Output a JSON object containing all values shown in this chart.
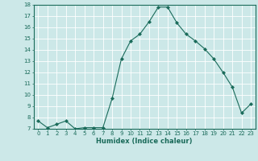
{
  "x": [
    0,
    1,
    2,
    3,
    4,
    5,
    6,
    7,
    8,
    9,
    10,
    11,
    12,
    13,
    14,
    15,
    16,
    17,
    18,
    19,
    20,
    21,
    22,
    23
  ],
  "y": [
    7.7,
    7.1,
    7.4,
    7.7,
    7.0,
    7.1,
    7.1,
    7.1,
    9.7,
    13.2,
    14.8,
    15.4,
    16.5,
    17.8,
    17.8,
    16.4,
    15.4,
    14.8,
    14.1,
    13.2,
    12.0,
    10.7,
    8.4,
    9.2
  ],
  "xlabel": "Humidex (Indice chaleur)",
  "ylabel": "",
  "xlim": [
    -0.5,
    23.5
  ],
  "ylim": [
    7,
    18
  ],
  "yticks": [
    7,
    8,
    9,
    10,
    11,
    12,
    13,
    14,
    15,
    16,
    17,
    18
  ],
  "xticks": [
    0,
    1,
    2,
    3,
    4,
    5,
    6,
    7,
    8,
    9,
    10,
    11,
    12,
    13,
    14,
    15,
    16,
    17,
    18,
    19,
    20,
    21,
    22,
    23
  ],
  "bg_color": "#cce8e8",
  "line_color": "#1a6b5a",
  "marker_color": "#1a6b5a",
  "grid_color": "#ffffff",
  "tick_color": "#1a6b5a",
  "label_color": "#1a6b5a"
}
